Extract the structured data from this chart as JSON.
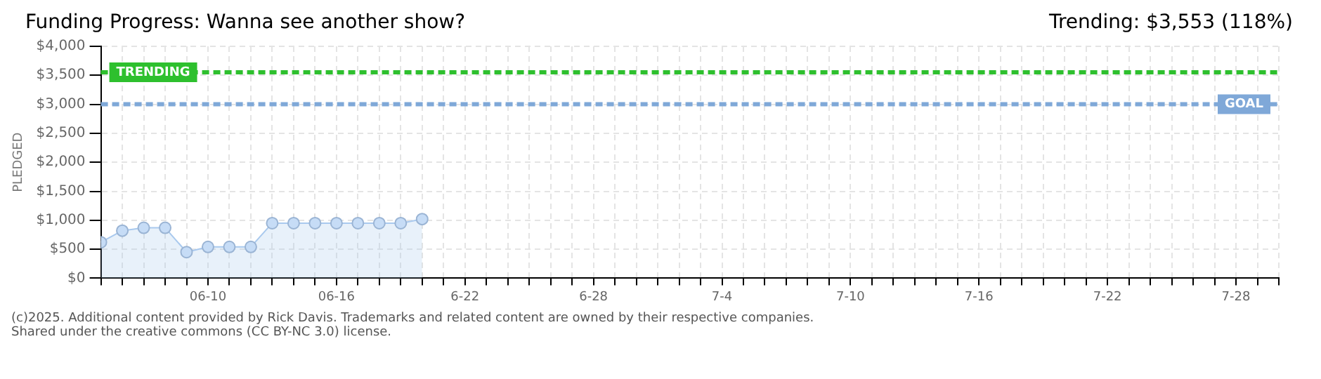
{
  "chart_data": {
    "type": "area",
    "title": "Funding Progress: Wanna see another show?",
    "subtitle": "Trending: $3,553 (118%)",
    "ylabel": "PLEDGED",
    "x": [
      "--06-05",
      "--06-06",
      "--06-07",
      "--06-08",
      "--06-09",
      "--06-10",
      "--06-11",
      "--06-12",
      "--06-13",
      "--06-14",
      "--06-15",
      "--06-16",
      "--06-17",
      "--06-18",
      "--06-19",
      "--06-20"
    ],
    "series": [
      {
        "color": "#a9c9ee",
        "values": [
          620,
          820,
          870,
          870,
          450,
          540,
          540,
          540,
          950,
          950,
          950,
          950,
          950,
          950,
          950,
          1020
        ]
      }
    ],
    "xlim": [
      "--06-05",
      "--07-30"
    ],
    "xticks": [
      {
        "value": "--06-10",
        "label": "06-10"
      },
      {
        "value": "--06-16",
        "label": "06-16"
      },
      {
        "value": "--06-22",
        "label": "6-22"
      },
      {
        "value": "--06-28",
        "label": "6-28"
      },
      {
        "value": "--07-04",
        "label": "7-4"
      },
      {
        "value": "--07-10",
        "label": "7-10"
      },
      {
        "value": "--07-16",
        "label": "7-16"
      },
      {
        "value": "--07-22",
        "label": "7-22"
      },
      {
        "value": "--07-28",
        "label": "7-28"
      }
    ],
    "ylim": [
      0,
      4000
    ],
    "yticks": [
      {
        "value": 0,
        "label": "$0"
      },
      {
        "value": 500,
        "label": "$500"
      },
      {
        "value": 1000,
        "label": "$1,000"
      },
      {
        "value": 1500,
        "label": "$1,500"
      },
      {
        "value": 2000,
        "label": "$2,000"
      },
      {
        "value": 2500,
        "label": "$2,500"
      },
      {
        "value": 3000,
        "label": "$3,000"
      },
      {
        "value": 3500,
        "label": "$3,500"
      },
      {
        "value": 4000,
        "label": "$4,000"
      }
    ],
    "grid": true,
    "marker": "circle",
    "legend": false,
    "ref_lines": [
      {
        "axis": "y",
        "value": 3553,
        "label": "TRENDING",
        "color": "#2ec02e",
        "line_style": "dashed"
      },
      {
        "axis": "y",
        "value": 3000,
        "label": "GOAL",
        "color": "#7fa8d8",
        "line_style": "dashed"
      }
    ],
    "annotations": [
      "(c)2025. Additional content provided by Rick Davis. Trademarks and related content are owned by their respective companies.",
      "Shared under the creative commons (CC BY-NC 3.0) license."
    ]
  }
}
